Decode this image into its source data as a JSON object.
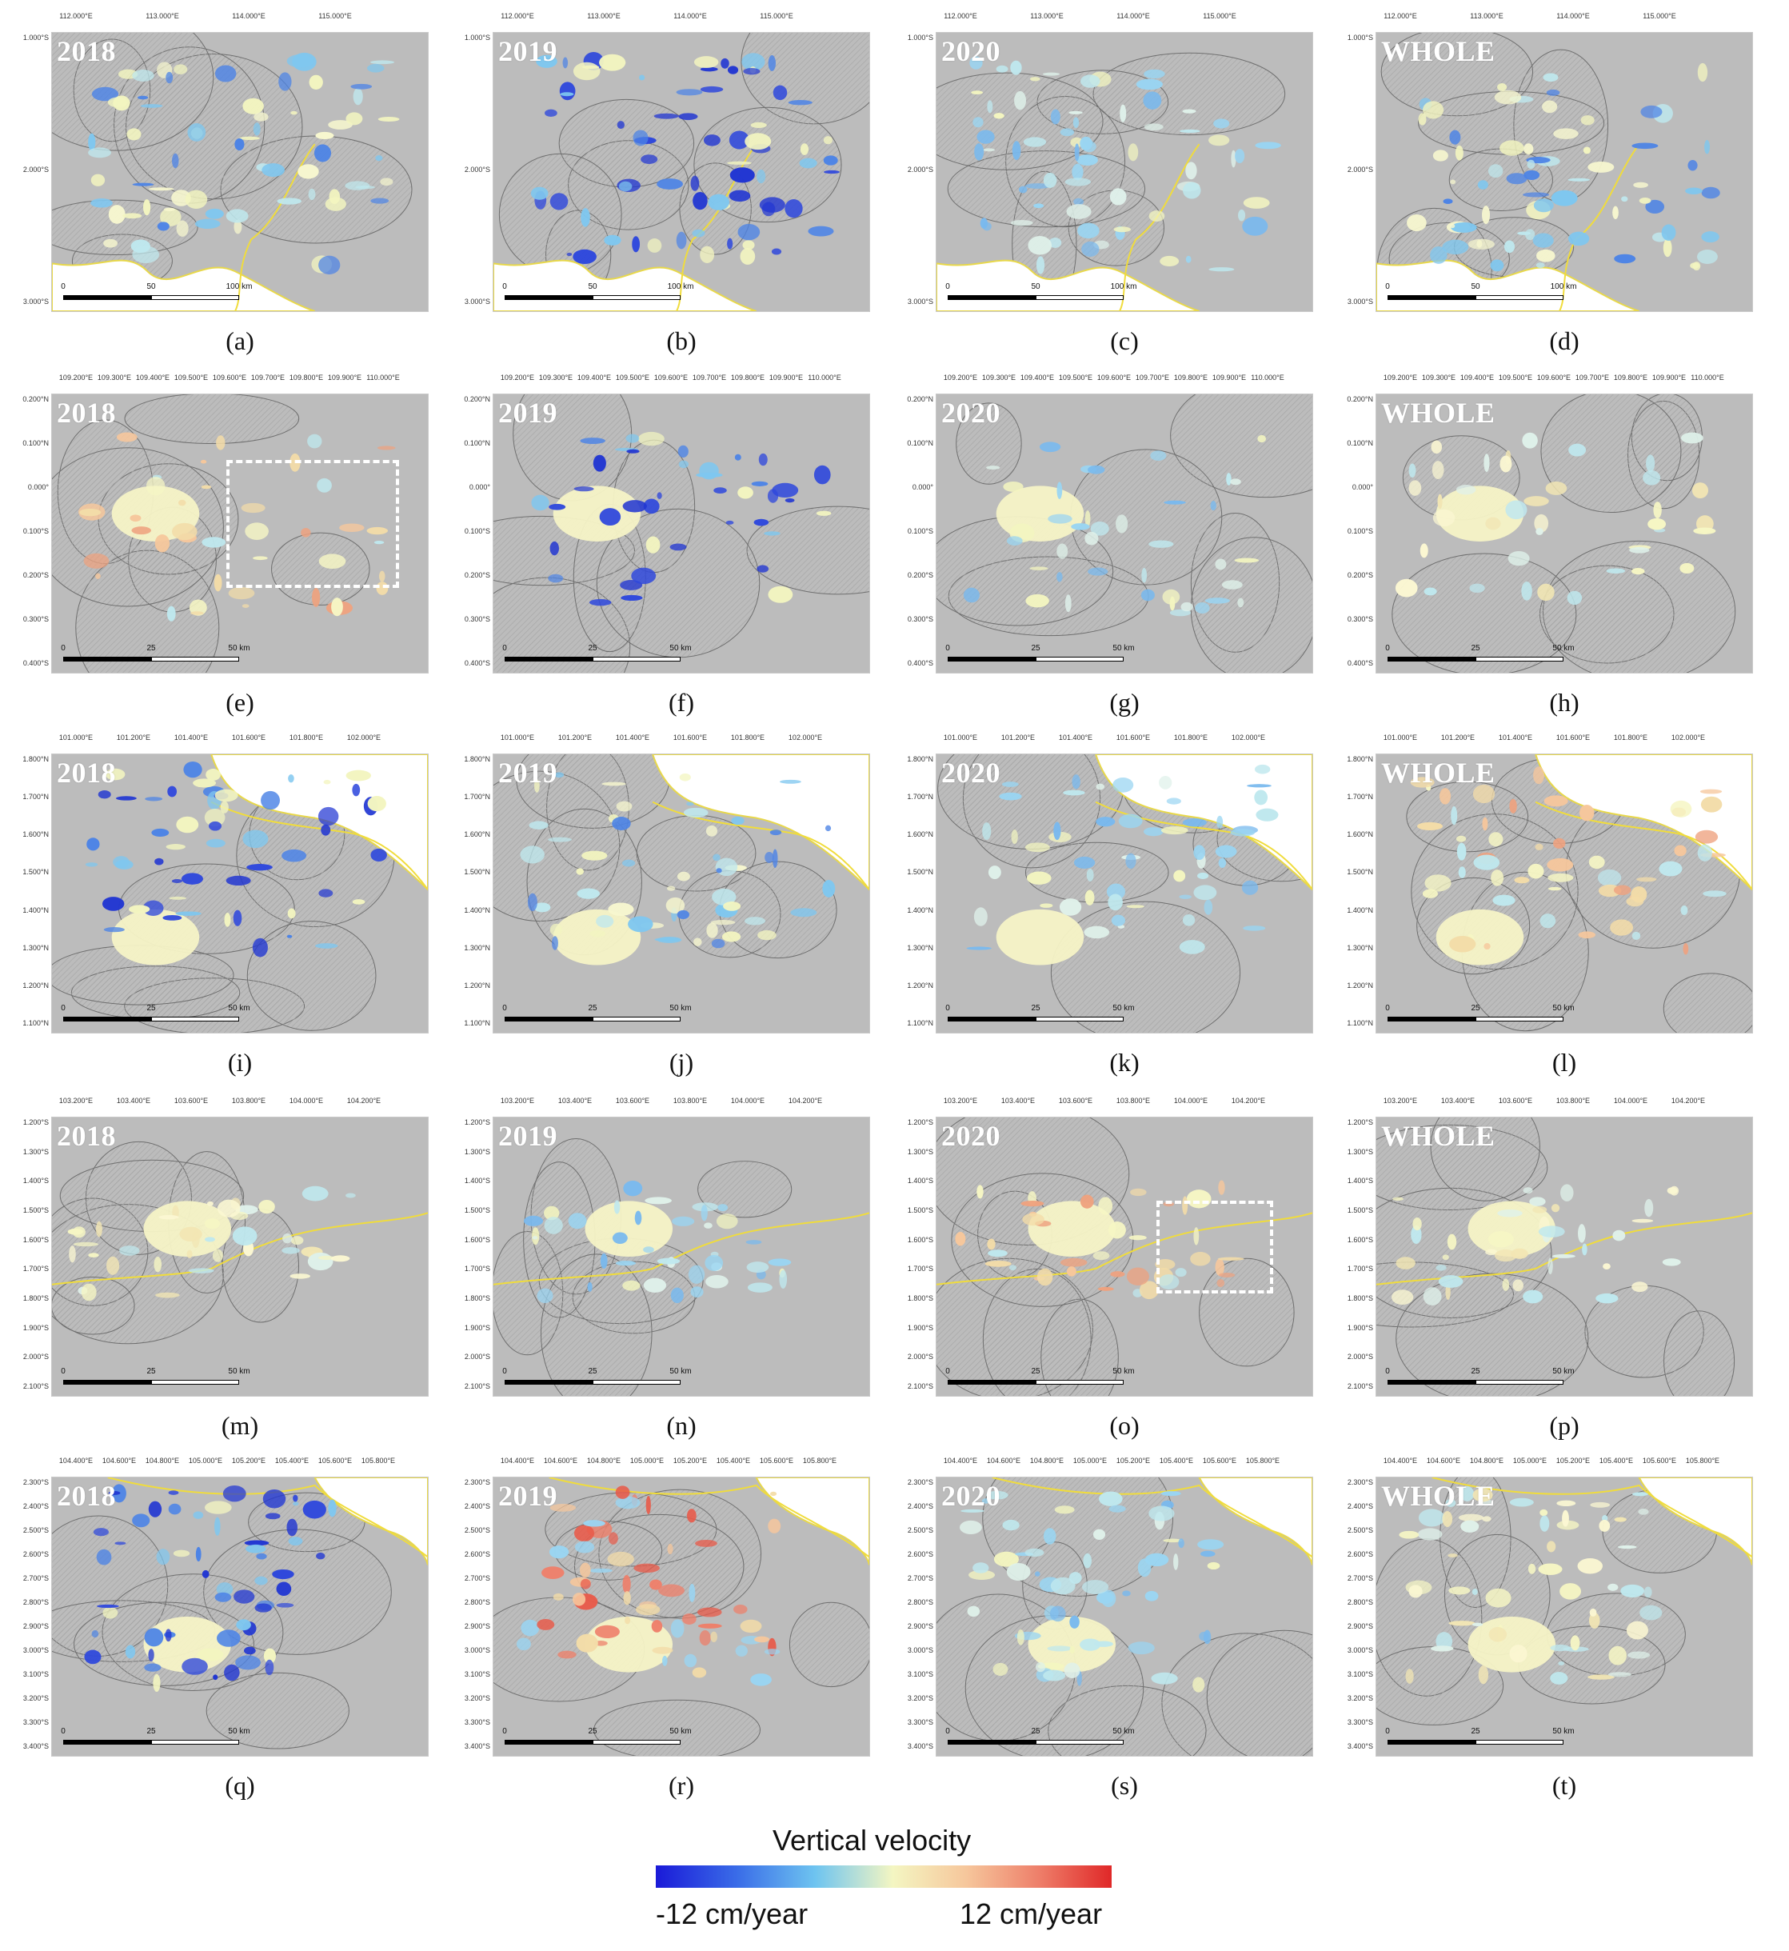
{
  "figure": {
    "panels": [
      {
        "id": "a",
        "label": "(a)",
        "year": "2018",
        "lon": [
          "112.000°E",
          "113.000°E",
          "114.000°E",
          "115.000°E"
        ],
        "lat": [
          "1.000°S",
          "2.000°S",
          "3.000°S"
        ],
        "scale": [
          "0",
          "50",
          "100 km"
        ],
        "region": "r1",
        "cover": "mixed-blue-yellow"
      },
      {
        "id": "b",
        "label": "(b)",
        "year": "2019",
        "lon": [
          "112.000°E",
          "113.000°E",
          "114.000°E",
          "115.000°E"
        ],
        "lat": [
          "1.000°S",
          "2.000°S",
          "3.000°S"
        ],
        "scale": [
          "0",
          "50",
          "100 km"
        ],
        "region": "r1",
        "cover": "strong-blue"
      },
      {
        "id": "c",
        "label": "(c)",
        "year": "2020",
        "lon": [
          "112.000°E",
          "113.000°E",
          "114.000°E",
          "115.000°E"
        ],
        "lat": [
          "1.000°S",
          "2.000°S",
          "3.000°S"
        ],
        "scale": [
          "0",
          "50",
          "100 km"
        ],
        "region": "r1",
        "cover": "light-blue"
      },
      {
        "id": "d",
        "label": "(d)",
        "year": "WHOLE",
        "lon": [
          "112.000°E",
          "113.000°E",
          "114.000°E",
          "115.000°E"
        ],
        "lat": [
          "1.000°S",
          "2.000°S",
          "3.000°S"
        ],
        "scale": [
          "0",
          "50",
          "100 km"
        ],
        "region": "r1",
        "cover": "mixed-blue-yellow"
      },
      {
        "id": "e",
        "label": "(e)",
        "year": "2018",
        "lon": [
          "109.200°E",
          "109.300°E",
          "109.400°E",
          "109.500°E",
          "109.600°E",
          "109.700°E",
          "109.800°E",
          "109.900°E",
          "110.000°E"
        ],
        "lat": [
          "0.200°N",
          "0.100°N",
          "0.000°",
          "0.100°S",
          "0.200°S",
          "0.300°S",
          "0.400°S"
        ],
        "scale": [
          "0",
          "25",
          "50 km"
        ],
        "region": "r2",
        "cover": "orange",
        "box": true
      },
      {
        "id": "f",
        "label": "(f)",
        "year": "2019",
        "lon": [
          "109.200°E",
          "109.300°E",
          "109.400°E",
          "109.500°E",
          "109.600°E",
          "109.700°E",
          "109.800°E",
          "109.900°E",
          "110.000°E"
        ],
        "lat": [
          "0.200°N",
          "0.100°N",
          "0.000°",
          "0.100°S",
          "0.200°S",
          "0.300°S",
          "0.400°S"
        ],
        "scale": [
          "0",
          "25",
          "50 km"
        ],
        "region": "r2",
        "cover": "strong-blue"
      },
      {
        "id": "g",
        "label": "(g)",
        "year": "2020",
        "lon": [
          "109.200°E",
          "109.300°E",
          "109.400°E",
          "109.500°E",
          "109.600°E",
          "109.700°E",
          "109.800°E",
          "109.900°E",
          "110.000°E"
        ],
        "lat": [
          "0.200°N",
          "0.100°N",
          "0.000°",
          "0.100°S",
          "0.200°S",
          "0.300°S",
          "0.400°S"
        ],
        "scale": [
          "0",
          "25",
          "50 km"
        ],
        "region": "r2",
        "cover": "light-blue"
      },
      {
        "id": "h",
        "label": "(h)",
        "year": "WHOLE",
        "lon": [
          "109.200°E",
          "109.300°E",
          "109.400°E",
          "109.500°E",
          "109.600°E",
          "109.700°E",
          "109.800°E",
          "109.900°E",
          "110.000°E"
        ],
        "lat": [
          "0.200°N",
          "0.100°N",
          "0.000°",
          "0.100°S",
          "0.200°S",
          "0.300°S",
          "0.400°S"
        ],
        "scale": [
          "0",
          "25",
          "50 km"
        ],
        "region": "r2",
        "cover": "yellow"
      },
      {
        "id": "i",
        "label": "(i)",
        "year": "2018",
        "lon": [
          "101.000°E",
          "101.200°E",
          "101.400°E",
          "101.600°E",
          "101.800°E",
          "102.000°E"
        ],
        "lat": [
          "1.800°N",
          "1.700°N",
          "1.600°N",
          "1.500°N",
          "1.400°N",
          "1.300°N",
          "1.200°N",
          "1.100°N"
        ],
        "scale": [
          "0",
          "25",
          "50 km"
        ],
        "region": "r3",
        "cover": "strong-blue"
      },
      {
        "id": "j",
        "label": "(j)",
        "year": "2019",
        "lon": [
          "101.000°E",
          "101.200°E",
          "101.400°E",
          "101.600°E",
          "101.800°E",
          "102.000°E"
        ],
        "lat": [
          "1.800°N",
          "1.700°N",
          "1.600°N",
          "1.500°N",
          "1.400°N",
          "1.300°N",
          "1.200°N",
          "1.100°N"
        ],
        "scale": [
          "0",
          "25",
          "50 km"
        ],
        "region": "r3",
        "cover": "mixed-blue-yellow"
      },
      {
        "id": "k",
        "label": "(k)",
        "year": "2020",
        "lon": [
          "101.000°E",
          "101.200°E",
          "101.400°E",
          "101.600°E",
          "101.800°E",
          "102.000°E"
        ],
        "lat": [
          "1.800°N",
          "1.700°N",
          "1.600°N",
          "1.500°N",
          "1.400°N",
          "1.300°N",
          "1.200°N",
          "1.100°N"
        ],
        "scale": [
          "0",
          "25",
          "50 km"
        ],
        "region": "r3",
        "cover": "light-blue"
      },
      {
        "id": "l",
        "label": "(l)",
        "year": "WHOLE",
        "lon": [
          "101.000°E",
          "101.200°E",
          "101.400°E",
          "101.600°E",
          "101.800°E",
          "102.000°E"
        ],
        "lat": [
          "1.800°N",
          "1.700°N",
          "1.600°N",
          "1.500°N",
          "1.400°N",
          "1.300°N",
          "1.200°N",
          "1.100°N"
        ],
        "scale": [
          "0",
          "25",
          "50 km"
        ],
        "region": "r3",
        "cover": "orange"
      },
      {
        "id": "m",
        "label": "(m)",
        "year": "2018",
        "lon": [
          "103.200°E",
          "103.400°E",
          "103.600°E",
          "103.800°E",
          "104.000°E",
          "104.200°E"
        ],
        "lat": [
          "1.200°S",
          "1.300°S",
          "1.400°S",
          "1.500°S",
          "1.600°S",
          "1.700°S",
          "1.800°S",
          "1.900°S",
          "2.000°S",
          "2.100°S"
        ],
        "scale": [
          "0",
          "25",
          "50 km"
        ],
        "region": "r4",
        "cover": "yellow"
      },
      {
        "id": "n",
        "label": "(n)",
        "year": "2019",
        "lon": [
          "103.200°E",
          "103.400°E",
          "103.600°E",
          "103.800°E",
          "104.000°E",
          "104.200°E"
        ],
        "lat": [
          "1.200°S",
          "1.300°S",
          "1.400°S",
          "1.500°S",
          "1.600°S",
          "1.700°S",
          "1.800°S",
          "1.900°S",
          "2.000°S",
          "2.100°S"
        ],
        "scale": [
          "0",
          "25",
          "50 km"
        ],
        "region": "r4",
        "cover": "light-blue"
      },
      {
        "id": "o",
        "label": "(o)",
        "year": "2020",
        "lon": [
          "103.200°E",
          "103.400°E",
          "103.600°E",
          "103.800°E",
          "104.000°E",
          "104.200°E"
        ],
        "lat": [
          "1.200°S",
          "1.300°S",
          "1.400°S",
          "1.500°S",
          "1.600°S",
          "1.700°S",
          "1.800°S",
          "1.900°S",
          "2.000°S",
          "2.100°S"
        ],
        "scale": [
          "0",
          "25",
          "50 km"
        ],
        "region": "r4",
        "cover": "orange",
        "box": true
      },
      {
        "id": "p",
        "label": "(p)",
        "year": "WHOLE",
        "lon": [
          "103.200°E",
          "103.400°E",
          "103.600°E",
          "103.800°E",
          "104.000°E",
          "104.200°E"
        ],
        "lat": [
          "1.200°S",
          "1.300°S",
          "1.400°S",
          "1.500°S",
          "1.600°S",
          "1.700°S",
          "1.800°S",
          "1.900°S",
          "2.000°S",
          "2.100°S"
        ],
        "scale": [
          "0",
          "25",
          "50 km"
        ],
        "region": "r4",
        "cover": "yellow"
      },
      {
        "id": "q",
        "label": "(q)",
        "year": "2018",
        "lon": [
          "104.400°E",
          "104.600°E",
          "104.800°E",
          "105.000°E",
          "105.200°E",
          "105.400°E",
          "105.600°E",
          "105.800°E"
        ],
        "lat": [
          "2.300°S",
          "2.400°S",
          "2.500°S",
          "2.600°S",
          "2.700°S",
          "2.800°S",
          "2.900°S",
          "3.000°S",
          "3.100°S",
          "3.200°S",
          "3.300°S",
          "3.400°S"
        ],
        "scale": [
          "0",
          "25",
          "50 km"
        ],
        "region": "r5",
        "cover": "strong-blue"
      },
      {
        "id": "r",
        "label": "(r)",
        "year": "2019",
        "lon": [
          "104.400°E",
          "104.600°E",
          "104.800°E",
          "105.000°E",
          "105.200°E",
          "105.400°E",
          "105.600°E",
          "105.800°E"
        ],
        "lat": [
          "2.300°S",
          "2.400°S",
          "2.500°S",
          "2.600°S",
          "2.700°S",
          "2.800°S",
          "2.900°S",
          "3.000°S",
          "3.100°S",
          "3.200°S",
          "3.300°S",
          "3.400°S"
        ],
        "scale": [
          "0",
          "25",
          "50 km"
        ],
        "region": "r5",
        "cover": "red"
      },
      {
        "id": "s",
        "label": "(s)",
        "year": "2020",
        "lon": [
          "104.400°E",
          "104.600°E",
          "104.800°E",
          "105.000°E",
          "105.200°E",
          "105.400°E",
          "105.600°E",
          "105.800°E"
        ],
        "lat": [
          "2.300°S",
          "2.400°S",
          "2.500°S",
          "2.600°S",
          "2.700°S",
          "2.800°S",
          "2.900°S",
          "3.000°S",
          "3.100°S",
          "3.200°S",
          "3.300°S",
          "3.400°S"
        ],
        "scale": [
          "0",
          "25",
          "50 km"
        ],
        "region": "r5",
        "cover": "light-blue"
      },
      {
        "id": "t",
        "label": "(t)",
        "year": "WHOLE",
        "lon": [
          "104.400°E",
          "104.600°E",
          "104.800°E",
          "105.000°E",
          "105.200°E",
          "105.400°E",
          "105.600°E",
          "105.800°E"
        ],
        "lat": [
          "2.300°S",
          "2.400°S",
          "2.500°S",
          "2.600°S",
          "2.700°S",
          "2.800°S",
          "2.900°S",
          "3.000°S",
          "3.100°S",
          "3.200°S",
          "3.300°S",
          "3.400°S"
        ],
        "scale": [
          "0",
          "25",
          "50 km"
        ],
        "region": "r5",
        "cover": "yellow"
      }
    ]
  },
  "legend": {
    "title": "Vertical velocity",
    "min_label": "-12 cm/year",
    "max_label": "12 cm/year",
    "colors": [
      "#1a1ad8",
      "#3a6de8",
      "#6ec4f0",
      "#f4f6c2",
      "#f6c79c",
      "#ee7f6a",
      "#e02828"
    ]
  }
}
